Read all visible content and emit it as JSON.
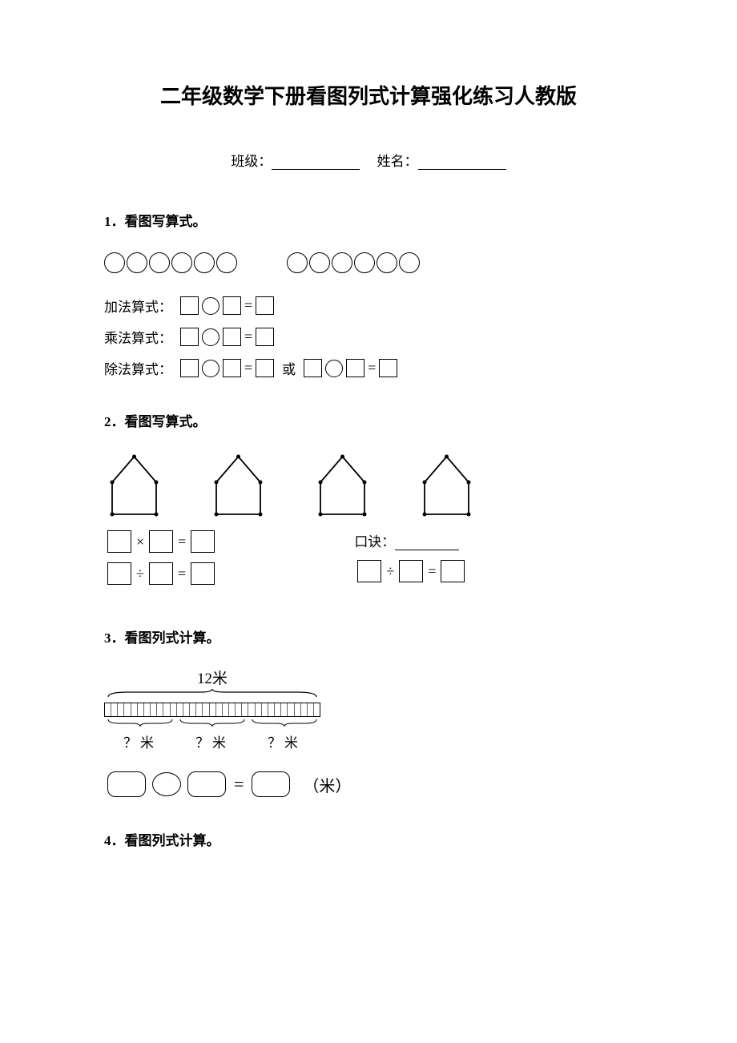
{
  "title": "二年级数学下册看图列式计算强化练习人教版",
  "info": {
    "class_label": "班级：",
    "name_label": "姓名："
  },
  "q1": {
    "title": "1．看图写算式。",
    "circles_per_group": 6,
    "group_count": 2,
    "add_label": "加法算式：",
    "mul_label": "乘法算式：",
    "div_label": "除法算式：",
    "or_text": "或",
    "eq": "="
  },
  "q2": {
    "title": "2．看图写算式。",
    "house_count": 4,
    "house_points_per": 5,
    "mul_op": "×",
    "div_op": "÷",
    "eq": "=",
    "koujue_label": "口诀：",
    "house_color": "#000000",
    "house_stroke_width": 1.8
  },
  "q3": {
    "title": "3．看图列式计算。",
    "top_label": "12米",
    "segment_count": 3,
    "tape_tick_count": 33,
    "bottom_label": "？米",
    "eq": "=",
    "unit": "（米）"
  },
  "q4": {
    "title": "4．看图列式计算。"
  },
  "colors": {
    "text": "#000000",
    "background": "#ffffff",
    "border": "#000000"
  }
}
